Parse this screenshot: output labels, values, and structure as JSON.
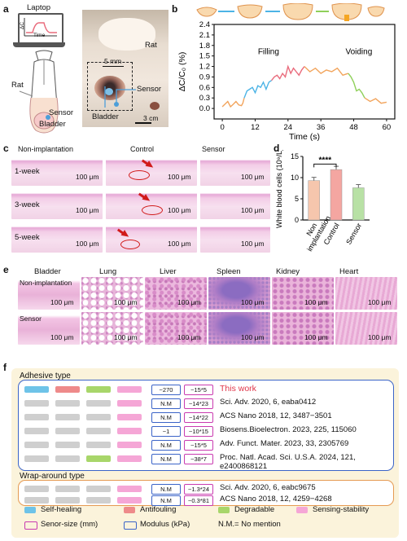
{
  "panels": {
    "a": "a",
    "b": "b",
    "c": "c",
    "d": "d",
    "e": "e",
    "f": "f"
  },
  "panel_a": {
    "laptop": "Laptop",
    "dc": "ΔC",
    "time": "Time",
    "rat_left": "Rat",
    "sensor_left": "Sensor",
    "bladder_left": "Bladder",
    "rat_photo": "Rat",
    "mm": "5 mm",
    "sensor_photo": "Sensor",
    "bladder_photo": "Bladder",
    "cm": "3 cm"
  },
  "chart_data": {
    "type": "line",
    "xlabel": "Time (s)",
    "ylabel": "ΔC/C₀ (%)",
    "xlim": [
      -3,
      63
    ],
    "ylim": [
      -0.3,
      2.4
    ],
    "xticks": [
      0,
      12,
      24,
      36,
      48,
      60
    ],
    "yticks": [
      0.0,
      0.3,
      0.6,
      0.9,
      1.2,
      1.5,
      1.8,
      2.1,
      2.4
    ],
    "annotations": [
      "Filling",
      "Voiding"
    ],
    "series": [
      {
        "color": "#f2a45c",
        "x": [
          0,
          2,
          3,
          4,
          5,
          6,
          7,
          7.5,
          8
        ],
        "y": [
          0.05,
          0.2,
          0.05,
          0.12,
          0.2,
          0.1,
          0.08,
          0.15,
          0.3
        ]
      },
      {
        "color": "#4cb4e6",
        "x": [
          8,
          9,
          10,
          11,
          12,
          13,
          14,
          15,
          16,
          17,
          18
        ],
        "y": [
          0.3,
          0.5,
          0.55,
          0.6,
          0.45,
          0.65,
          0.6,
          0.75,
          0.55,
          0.75,
          0.8
        ]
      },
      {
        "color": "#e96b7c",
        "x": [
          18,
          19,
          20,
          21,
          22,
          23,
          24,
          25,
          26,
          27,
          28,
          29,
          30
        ],
        "y": [
          0.8,
          0.9,
          0.95,
          0.85,
          1.0,
          0.9,
          1.2,
          1.0,
          1.15,
          1.05,
          0.95,
          1.1,
          1.2
        ]
      },
      {
        "color": "#f2a45c",
        "x": [
          30,
          32,
          34,
          36,
          38,
          40,
          42,
          44,
          46
        ],
        "y": [
          1.2,
          1.05,
          1.15,
          1.0,
          1.1,
          1.05,
          1.15,
          0.95,
          1.0
        ]
      },
      {
        "color": "#8fd05a",
        "x": [
          46,
          47,
          48,
          49,
          50,
          51,
          52
        ],
        "y": [
          1.0,
          0.9,
          0.75,
          0.5,
          0.55,
          0.45,
          0.3
        ]
      },
      {
        "color": "#f2a45c",
        "x": [
          52,
          54,
          56,
          58,
          60
        ],
        "y": [
          0.3,
          0.2,
          0.28,
          0.15,
          0.18
        ]
      }
    ]
  },
  "panel_c": {
    "cols": [
      "Non-implantation",
      "Control",
      "Sensor"
    ],
    "rows": [
      "1-week",
      "3-week",
      "5-week"
    ],
    "scale": "100 μm"
  },
  "chart_d": {
    "type": "bar",
    "ylabel": "White blood cells (10⁹/L)",
    "categories": [
      "Non implantation",
      "Control",
      "Sensor"
    ],
    "values": [
      9.3,
      11.9,
      7.6
    ],
    "ylim": [
      0,
      15
    ],
    "yticks": [
      0,
      5,
      10,
      15
    ],
    "colors": [
      "#f6c6ad",
      "#f4a6a1",
      "#b8e1a5"
    ],
    "sig": "****"
  },
  "panel_e": {
    "cols": [
      "Bladder",
      "Lung",
      "Liver",
      "Spleen",
      "Kidney",
      "Heart"
    ],
    "rows": [
      "Non-implantation",
      "Sensor"
    ],
    "scale": "100 μm"
  },
  "panel_f": {
    "adhesive_title": "Adhesive type",
    "wrap_title": "Wrap-around type",
    "rows": [
      {
        "mod": "~270",
        "size": "~15*5",
        "ref": "This work",
        "highlight": true,
        "bars": [
          "#6ec3e8",
          "#ee8a8a",
          "#a8d66a",
          "#f5a6d6"
        ]
      },
      {
        "mod": "N.M",
        "size": "~14*23",
        "ref": "Sci. Adv. 2020, 6, eaba0412",
        "bars": [
          "#cfcfcf",
          "#cfcfcf",
          "#cfcfcf",
          "#f5a6d6"
        ]
      },
      {
        "mod": "N.M",
        "size": "~14*22",
        "ref": "ACS Nano 2018, 12, 3487−3501",
        "bars": [
          "#cfcfcf",
          "#cfcfcf",
          "#cfcfcf",
          "#f5a6d6"
        ]
      },
      {
        "mod": "~1",
        "size": "~10*15",
        "ref": "Biosens.Bioelectron. 2023, 225, 115060",
        "bars": [
          "#cfcfcf",
          "#cfcfcf",
          "#cfcfcf",
          "#f5a6d6"
        ]
      },
      {
        "mod": "N.M",
        "size": "~15*5",
        "ref": "Adv. Funct. Mater. 2023, 33, 2305769",
        "bars": [
          "#cfcfcf",
          "#cfcfcf",
          "#cfcfcf",
          "#f5a6d6"
        ]
      },
      {
        "mod": "N.M",
        "size": "~38*7",
        "ref": "Proc. Natl. Acad. Sci. U.S.A. 2024, 121,",
        "ref2": "e2400868121",
        "bars": [
          "#cfcfcf",
          "#cfcfcf",
          "#a8d66a",
          "#f5a6d6"
        ]
      },
      {
        "mod": "N.M",
        "size": "~1.3*24",
        "ref": "Sci. Adv. 2020, 6, eabc9675",
        "bars": [
          "#cfcfcf",
          "#cfcfcf",
          "#cfcfcf",
          "#f5a6d6"
        ]
      },
      {
        "mod": "N.M",
        "size": "~0.3*81",
        "ref": "ACS Nano 2018, 12, 4259−4268",
        "bars": [
          "#cfcfcf",
          "#cfcfcf",
          "#cfcfcf",
          "#f5a6d6"
        ]
      }
    ],
    "legend": {
      "self_healing": "Self-healing",
      "antifouling": "Antifouling",
      "degradable": "Degradable",
      "sensing": "Sensing-stability",
      "size": "Senor-size (mm)",
      "modulus": "Modulus (kPa)",
      "nm": "N.M.= No mention"
    }
  }
}
